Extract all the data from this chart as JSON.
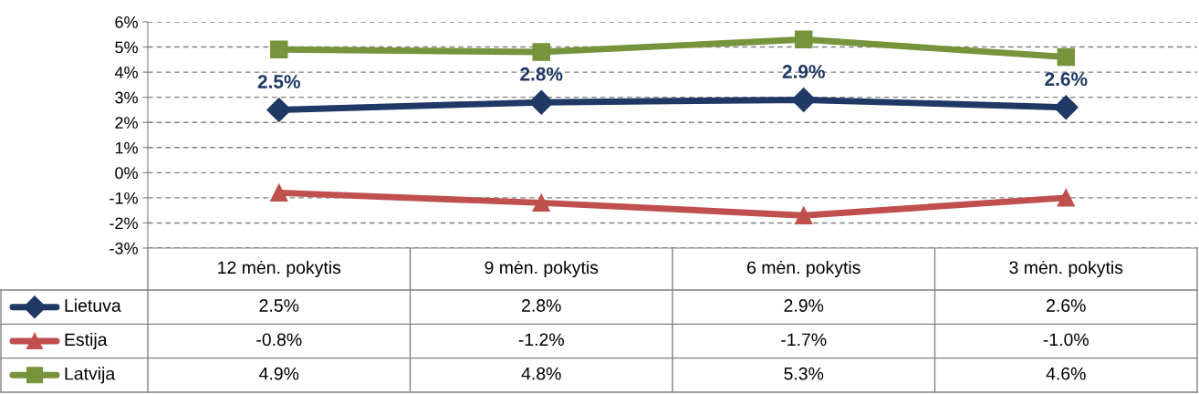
{
  "chart_data": {
    "type": "line",
    "categories": [
      "12 mėn. pokytis",
      "9 mėn. pokytis",
      "6 mėn. pokytis",
      "3 mėn. pokytis"
    ],
    "series": [
      {
        "name": "Lietuva",
        "color": "#1f3864",
        "marker": "diamond",
        "values": [
          2.5,
          2.8,
          2.9,
          2.6
        ],
        "value_labels": [
          "2.5%",
          "2.8%",
          "2.9%",
          "2.6%"
        ],
        "data_labels": true
      },
      {
        "name": "Estija",
        "color": "#c0504d",
        "marker": "triangle",
        "values": [
          -0.8,
          -1.2,
          -1.7,
          -1.0
        ],
        "value_labels": [
          "-0.8%",
          "-1.2%",
          "-1.7%",
          "-1.0%"
        ]
      },
      {
        "name": "Latvija",
        "color": "#77933c",
        "marker": "square",
        "values": [
          4.9,
          4.8,
          5.3,
          4.6
        ],
        "value_labels": [
          "4.9%",
          "4.8%",
          "5.3%",
          "4.6%"
        ]
      }
    ],
    "ylim": [
      -3,
      6
    ],
    "yticks": [
      {
        "value": -3,
        "label": "-3%"
      },
      {
        "value": -2,
        "label": "-2%"
      },
      {
        "value": -1,
        "label": "-1%"
      },
      {
        "value": 0,
        "label": "0%"
      },
      {
        "value": 1,
        "label": "1%"
      },
      {
        "value": 2,
        "label": "2%"
      },
      {
        "value": 3,
        "label": "3%"
      },
      {
        "value": 4,
        "label": "4%"
      },
      {
        "value": 5,
        "label": "5%"
      },
      {
        "value": 6,
        "label": "6%"
      }
    ],
    "grid": "y",
    "line_style": "solid",
    "data_labels": true,
    "legend": "bottom left"
  }
}
